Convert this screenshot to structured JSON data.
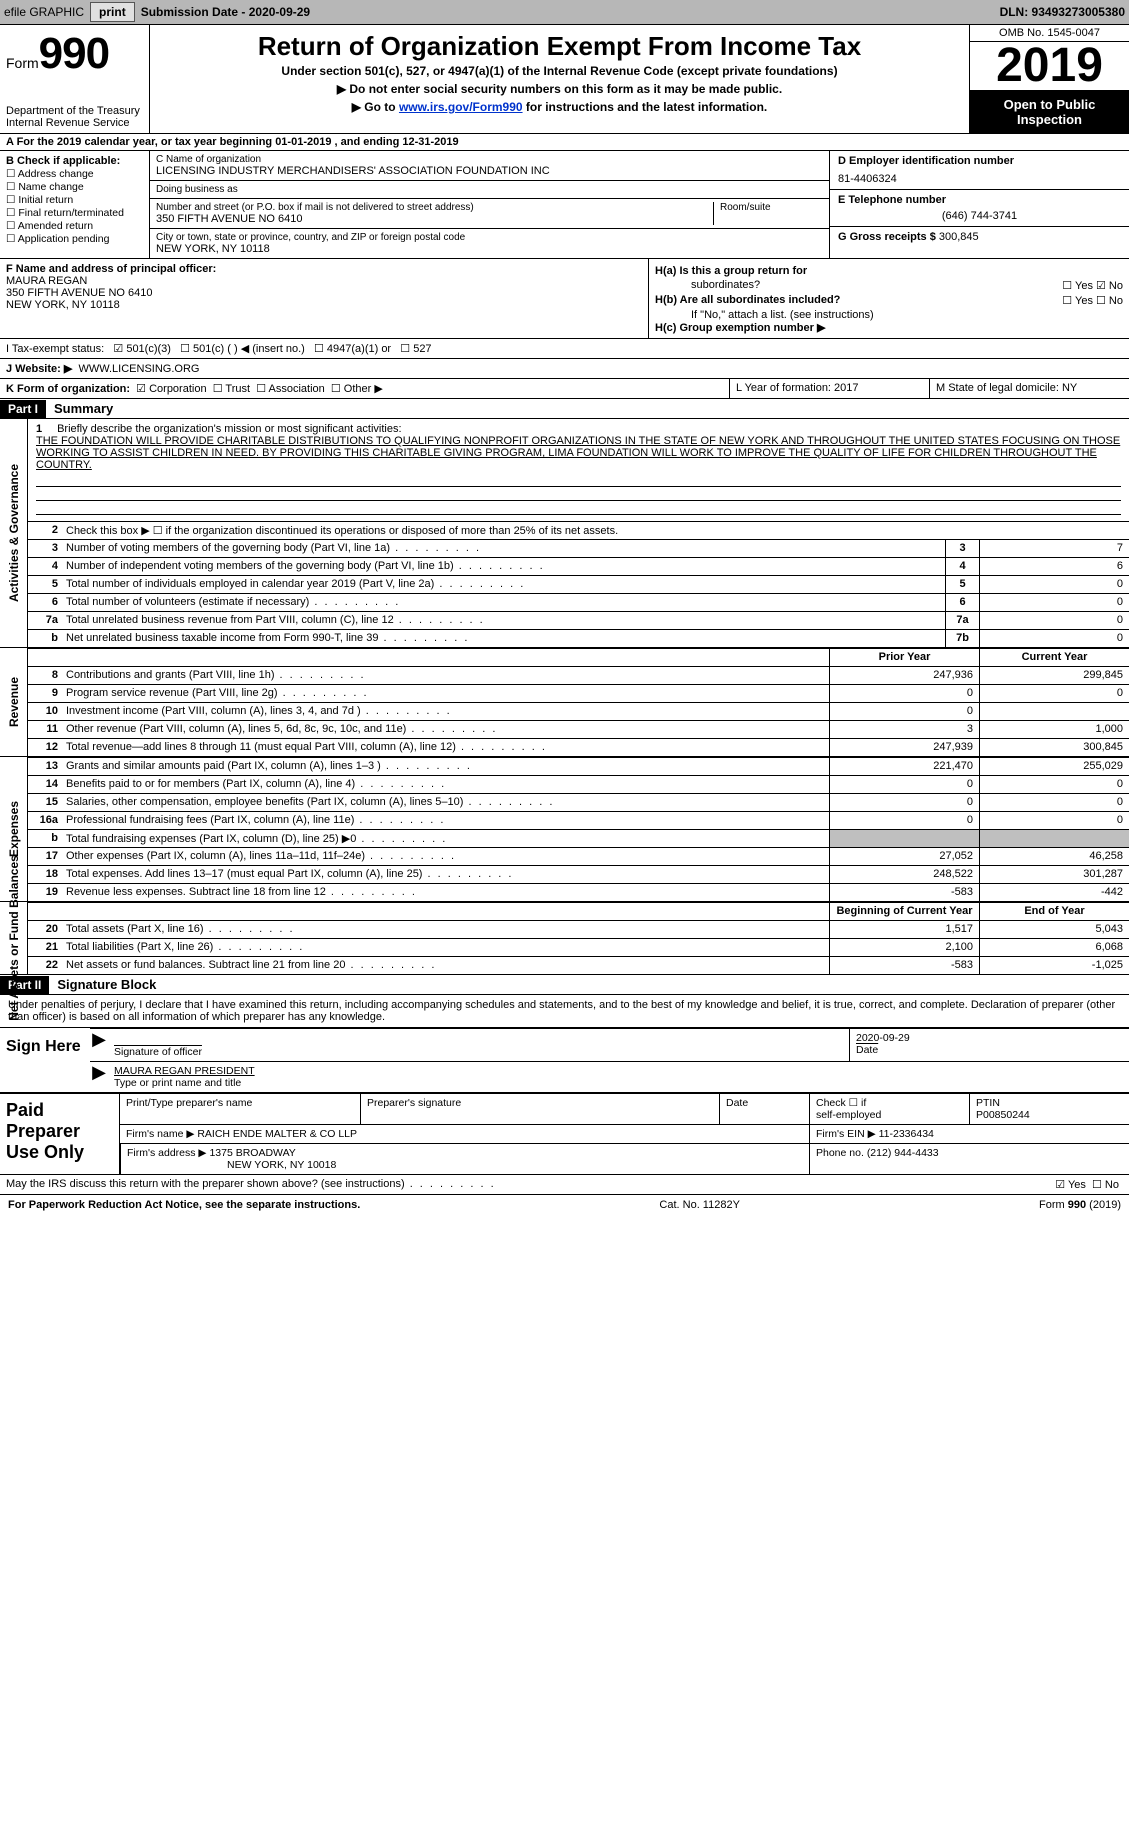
{
  "colors": {
    "bar": "#b7b7b7",
    "black": "#000000",
    "shade": "#bfbfbf",
    "link": "#0033cc"
  },
  "top": {
    "efile": "efile GRAPHIC",
    "print": "print",
    "submission": "Submission Date - 2020-09-29",
    "dln": "DLN: 93493273005380"
  },
  "header": {
    "form_word": "Form",
    "form_no": "990",
    "dept1": "Department of the Treasury",
    "dept2": "Internal Revenue Service",
    "title": "Return of Organization Exempt From Income Tax",
    "sub1": "Under section 501(c), 527, or 4947(a)(1) of the Internal Revenue Code (except private foundations)",
    "sub2": "▶ Do not enter social security numbers on this form as it may be made public.",
    "sub3_pre": "▶ Go to ",
    "sub3_link": "www.irs.gov/Form990",
    "sub3_post": " for instructions and the latest information.",
    "omb": "OMB No. 1545-0047",
    "year": "2019",
    "inspect1": "Open to Public",
    "inspect2": "Inspection"
  },
  "rowA": "A For the 2019 calendar year, or tax year beginning 01-01-2019    , and ending 12-31-2019",
  "boxB": {
    "label": "B Check if applicable:",
    "opts": [
      "Address change",
      "Name change",
      "Initial return",
      "Final return/terminated",
      "Amended return",
      "Application pending"
    ]
  },
  "boxC": {
    "name_lbl": "C Name of organization",
    "name": "LICENSING INDUSTRY MERCHANDISERS' ASSOCIATION FOUNDATION INC",
    "dba_lbl": "Doing business as",
    "dba": "",
    "street_lbl": "Number and street (or P.O. box if mail is not delivered to street address)",
    "room_lbl": "Room/suite",
    "street": "350 FIFTH AVENUE NO 6410",
    "city_lbl": "City or town, state or province, country, and ZIP or foreign postal code",
    "city": "NEW YORK, NY  10118"
  },
  "boxD": {
    "lbl": "D Employer identification number",
    "val": "81-4406324"
  },
  "boxE": {
    "lbl": "E Telephone number",
    "val": "(646) 744-3741"
  },
  "boxG": {
    "lbl": "G Gross receipts $",
    "val": "300,845"
  },
  "boxF": {
    "lbl": "F  Name and address of principal officer:",
    "line1": "MAURA REGAN",
    "line2": "350 FIFTH AVENUE NO 6410",
    "line3": "NEW YORK, NY  10118"
  },
  "boxH": {
    "a_lbl": "H(a)  Is this a group return for",
    "a_lbl2": "subordinates?",
    "a_yes": "☐ Yes",
    "a_no": "☑ No",
    "b_lbl": "H(b)  Are all subordinates included?",
    "b_yes": "☐ Yes",
    "b_no": "☐ No",
    "b_note": "If \"No,\" attach a list. (see instructions)",
    "c_lbl": "H(c)  Group exemption number ▶"
  },
  "boxI": {
    "lbl": "I   Tax-exempt status:",
    "o1": "☑  501(c)(3)",
    "o2": "☐  501(c) (  ) ◀ (insert no.)",
    "o3": "☐  4947(a)(1) or",
    "o4": "☐  527"
  },
  "boxJ": {
    "lbl": "J   Website: ▶",
    "val": "WWW.LICENSING.ORG"
  },
  "boxK": {
    "lbl": "K Form of organization:",
    "o1": "☑ Corporation",
    "o2": "☐ Trust",
    "o3": "☐ Association",
    "o4": "☐ Other ▶"
  },
  "boxL": "L Year of formation: 2017",
  "boxM": "M State of legal domicile: NY",
  "part1": {
    "hdr": "Part I",
    "title": "Summary"
  },
  "groups": {
    "g1": "Activities & Governance",
    "g2": "Revenue",
    "g3": "Expenses",
    "g4": "Net Assets or Fund Balances"
  },
  "mission": {
    "num": "1",
    "lead": "Briefly describe the organization's mission or most significant activities:",
    "text": "THE FOUNDATION WILL PROVIDE CHARITABLE DISTRIBUTIONS TO QUALIFYING NONPROFIT ORGANIZATIONS IN THE STATE OF NEW YORK AND THROUGHOUT THE UNITED STATES FOCUSING ON THOSE WORKING TO ASSIST CHILDREN IN NEED. BY PROVIDING THIS CHARITABLE GIVING PROGRAM, LIMA FOUNDATION WILL WORK TO IMPROVE THE QUALITY OF LIFE FOR CHILDREN THROUGHOUT THE COUNTRY."
  },
  "lines_ag": [
    {
      "n": "2",
      "d": "Check this box ▶ ☐  if the organization discontinued its operations or disposed of more than 25% of its net assets.",
      "box": "",
      "v": ""
    },
    {
      "n": "3",
      "d": "Number of voting members of the governing body (Part VI, line 1a)",
      "box": "3",
      "v": "7"
    },
    {
      "n": "4",
      "d": "Number of independent voting members of the governing body (Part VI, line 1b)",
      "box": "4",
      "v": "6"
    },
    {
      "n": "5",
      "d": "Total number of individuals employed in calendar year 2019 (Part V, line 2a)",
      "box": "5",
      "v": "0"
    },
    {
      "n": "6",
      "d": "Total number of volunteers (estimate if necessary)",
      "box": "6",
      "v": "0"
    },
    {
      "n": "7a",
      "d": "Total unrelated business revenue from Part VIII, column (C), line 12",
      "box": "7a",
      "v": "0"
    },
    {
      "n": "b",
      "d": "Net unrelated business taxable income from Form 990-T, line 39",
      "box": "7b",
      "v": "0"
    }
  ],
  "rev_hdr": {
    "py": "Prior Year",
    "cy": "Current Year"
  },
  "lines_rev": [
    {
      "n": "8",
      "d": "Contributions and grants (Part VIII, line 1h)",
      "py": "247,936",
      "cy": "299,845"
    },
    {
      "n": "9",
      "d": "Program service revenue (Part VIII, line 2g)",
      "py": "0",
      "cy": "0"
    },
    {
      "n": "10",
      "d": "Investment income (Part VIII, column (A), lines 3, 4, and 7d )",
      "py": "0",
      "cy": ""
    },
    {
      "n": "11",
      "d": "Other revenue (Part VIII, column (A), lines 5, 6d, 8c, 9c, 10c, and 11e)",
      "py": "3",
      "cy": "1,000"
    },
    {
      "n": "12",
      "d": "Total revenue—add lines 8 through 11 (must equal Part VIII, column (A), line 12)",
      "py": "247,939",
      "cy": "300,845"
    }
  ],
  "lines_exp": [
    {
      "n": "13",
      "d": "Grants and similar amounts paid (Part IX, column (A), lines 1–3 )",
      "py": "221,470",
      "cy": "255,029"
    },
    {
      "n": "14",
      "d": "Benefits paid to or for members (Part IX, column (A), line 4)",
      "py": "0",
      "cy": "0"
    },
    {
      "n": "15",
      "d": "Salaries, other compensation, employee benefits (Part IX, column (A), lines 5–10)",
      "py": "0",
      "cy": "0"
    },
    {
      "n": "16a",
      "d": "Professional fundraising fees (Part IX, column (A), line 11e)",
      "py": "0",
      "cy": "0"
    },
    {
      "n": "b",
      "d": "Total fundraising expenses (Part IX, column (D), line 25) ▶0",
      "py": "",
      "cy": "",
      "shade": true
    },
    {
      "n": "17",
      "d": "Other expenses (Part IX, column (A), lines 11a–11d, 11f–24e)",
      "py": "27,052",
      "cy": "46,258"
    },
    {
      "n": "18",
      "d": "Total expenses. Add lines 13–17 (must equal Part IX, column (A), line 25)",
      "py": "248,522",
      "cy": "301,287"
    },
    {
      "n": "19",
      "d": "Revenue less expenses. Subtract line 18 from line 12",
      "py": "-583",
      "cy": "-442"
    }
  ],
  "na_hdr": {
    "py": "Beginning of Current Year",
    "cy": "End of Year"
  },
  "lines_na": [
    {
      "n": "20",
      "d": "Total assets (Part X, line 16)",
      "py": "1,517",
      "cy": "5,043"
    },
    {
      "n": "21",
      "d": "Total liabilities (Part X, line 26)",
      "py": "2,100",
      "cy": "6,068"
    },
    {
      "n": "22",
      "d": "Net assets or fund balances. Subtract line 21 from line 20",
      "py": "-583",
      "cy": "-1,025"
    }
  ],
  "part2": {
    "hdr": "Part II",
    "title": "Signature Block"
  },
  "perjury": "Under penalties of perjury, I declare that I have examined this return, including accompanying schedules and statements, and to the best of my knowledge and belief, it is true, correct, and complete. Declaration of preparer (other than officer) is based on all information of which preparer has any knowledge.",
  "sign": {
    "here": "Sign Here",
    "sig_lbl": "Signature of officer",
    "date_lbl": "Date",
    "date": "2020-09-29",
    "name": "MAURA REGAN  PRESIDENT",
    "name_lbl": "Type or print name and title"
  },
  "prep": {
    "label": "Paid Preparer Use Only",
    "h1": "Print/Type preparer's name",
    "h2": "Preparer's signature",
    "h3": "Date",
    "h4a": "Check ☐ if",
    "h4b": "self-employed",
    "h5": "PTIN",
    "ptin": "P00850244",
    "firm_lbl": "Firm's name    ▶",
    "firm": "RAICH ENDE MALTER & CO LLP",
    "ein_lbl": "Firm's EIN ▶",
    "ein": "11-2336434",
    "addr_lbl": "Firm's address ▶",
    "addr1": "1375 BROADWAY",
    "addr2": "NEW YORK, NY  10018",
    "phone_lbl": "Phone no.",
    "phone": "(212) 944-4433"
  },
  "discuss": {
    "q": "May the IRS discuss this return with the preparer shown above? (see instructions)",
    "yes": "☑ Yes",
    "no": "☐ No"
  },
  "footer": {
    "pra": "For Paperwork Reduction Act Notice, see the separate instructions.",
    "cat": "Cat. No. 11282Y",
    "form": "Form 990 (2019)"
  }
}
